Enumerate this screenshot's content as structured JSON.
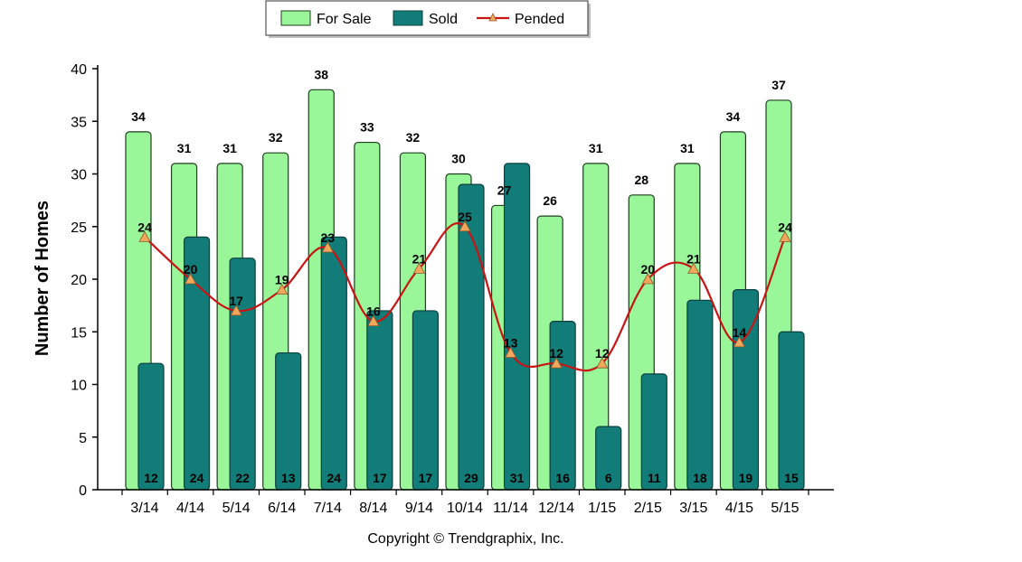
{
  "chart_data": {
    "type": "bar",
    "categories": [
      "3/14",
      "4/14",
      "5/14",
      "6/14",
      "7/14",
      "8/14",
      "9/14",
      "10/14",
      "11/14",
      "12/14",
      "1/15",
      "2/15",
      "3/15",
      "4/15",
      "5/15"
    ],
    "series": [
      {
        "name": "For Sale",
        "type": "bar",
        "color": "#99f799",
        "values": [
          34,
          31,
          31,
          32,
          38,
          33,
          32,
          30,
          27,
          26,
          31,
          28,
          31,
          34,
          37
        ]
      },
      {
        "name": "Sold",
        "type": "bar",
        "color": "#127c79",
        "values": [
          12,
          24,
          22,
          13,
          24,
          17,
          17,
          29,
          31,
          16,
          6,
          11,
          18,
          19,
          15
        ]
      },
      {
        "name": "Pended",
        "type": "line",
        "color": "#c81414",
        "marker_color": "#f2a75c",
        "values": [
          24,
          20,
          17,
          19,
          23,
          16,
          21,
          25,
          13,
          12,
          12,
          20,
          21,
          14,
          24
        ]
      }
    ],
    "ylabel": "Number of Homes",
    "ylim": [
      0,
      40
    ],
    "yticks": [
      0,
      5,
      10,
      15,
      20,
      25,
      30,
      35,
      40
    ],
    "legend_position": "top",
    "grid": false
  },
  "copyright": "Copyright © Trendgraphix, Inc."
}
